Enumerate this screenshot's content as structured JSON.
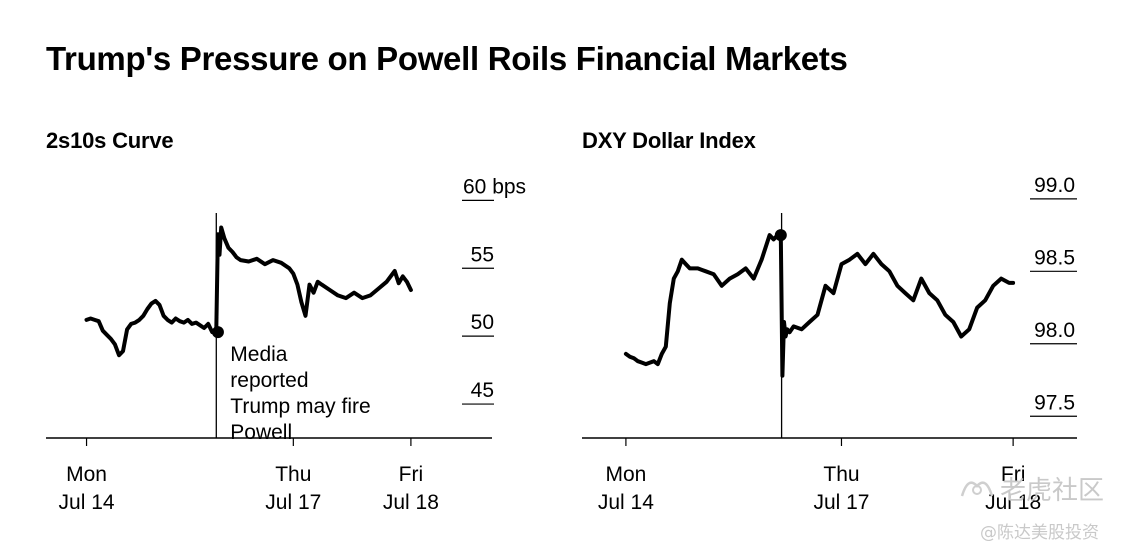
{
  "title": "Trump's Pressure on Powell Roils Financial Markets",
  "chart_data": [
    {
      "type": "line",
      "title": "2s10s Curve",
      "ylim": [
        42.5,
        61.5
      ],
      "y_ticks": [
        {
          "value": 60,
          "label": "60 bps"
        },
        {
          "value": 55,
          "label": "55"
        },
        {
          "value": 50,
          "label": "50"
        },
        {
          "value": 45,
          "label": "45"
        }
      ],
      "x_ticks": [
        {
          "x": 0.0,
          "line1": "Mon",
          "line2": "Jul 14"
        },
        {
          "x": 2.55,
          "line1": "Thu",
          "line2": "Jul 17"
        },
        {
          "x": 4.0,
          "line1": "Fri",
          "line2": "Jul 18"
        }
      ],
      "xlim": [
        -0.5,
        5.0
      ],
      "event": {
        "x": 1.6,
        "label_lines": [
          "Media",
          "reported",
          "Trump may fire",
          "Powell"
        ]
      },
      "marker": {
        "x": 1.62,
        "y": 50.3
      },
      "series": [
        {
          "x": [
            0.0,
            0.05,
            0.1,
            0.15,
            0.2,
            0.25,
            0.3,
            0.35,
            0.4,
            0.45,
            0.5,
            0.55,
            0.6,
            0.65,
            0.7,
            0.75,
            0.8,
            0.85,
            0.9,
            0.95,
            1.0,
            1.05,
            1.1,
            1.15,
            1.2,
            1.25,
            1.3,
            1.35,
            1.4,
            1.45,
            1.5,
            1.55,
            1.6,
            1.62,
            1.64,
            1.66,
            1.7,
            1.75,
            1.8,
            1.85,
            1.9,
            2.0,
            2.1,
            2.2,
            2.3,
            2.4,
            2.5,
            2.55,
            2.6,
            2.65,
            2.7,
            2.75,
            2.8,
            2.85,
            2.9,
            3.0,
            3.1,
            3.2,
            3.3,
            3.4,
            3.5,
            3.6,
            3.7,
            3.8,
            3.85,
            3.9,
            3.95,
            4.0
          ],
          "y": [
            51.2,
            51.3,
            51.2,
            51.1,
            50.4,
            50.1,
            49.8,
            49.4,
            48.6,
            48.9,
            50.5,
            50.9,
            51.0,
            51.2,
            51.5,
            52.0,
            52.4,
            52.6,
            52.3,
            51.5,
            51.2,
            51.0,
            51.3,
            51.1,
            51.0,
            51.2,
            50.9,
            51.0,
            50.8,
            50.6,
            50.9,
            50.3,
            50.5,
            57.5,
            56.0,
            58.0,
            57.2,
            56.5,
            56.2,
            55.8,
            55.6,
            55.5,
            55.7,
            55.3,
            55.6,
            55.4,
            55.0,
            54.6,
            53.8,
            52.5,
            51.5,
            53.8,
            53.2,
            54.0,
            53.8,
            53.4,
            53.0,
            52.8,
            53.2,
            52.8,
            53.0,
            53.5,
            54.0,
            54.8,
            53.9,
            54.4,
            54.0,
            53.4
          ]
        }
      ]
    },
    {
      "type": "line",
      "title": "DXY Dollar Index",
      "ylim": [
        97.35,
        99.13
      ],
      "y_ticks": [
        {
          "value": 99.0,
          "label": "99.0"
        },
        {
          "value": 98.5,
          "label": "98.5"
        },
        {
          "value": 98.0,
          "label": "98.0"
        },
        {
          "value": 97.5,
          "label": "97.5"
        }
      ],
      "x_ticks": [
        {
          "x": 0.0,
          "line1": "Mon",
          "line2": "Jul 14"
        },
        {
          "x": 2.7,
          "line1": "Thu",
          "line2": "Jul 17"
        },
        {
          "x": 4.85,
          "line1": "Fri",
          "line2": "Jul 18"
        }
      ],
      "xlim": [
        -0.55,
        5.65
      ],
      "event": {
        "x": 1.95,
        "label_lines": []
      },
      "marker": {
        "x": 1.94,
        "y": 98.75
      },
      "series": [
        {
          "x": [
            0.0,
            0.05,
            0.1,
            0.15,
            0.2,
            0.25,
            0.3,
            0.35,
            0.4,
            0.45,
            0.5,
            0.55,
            0.6,
            0.65,
            0.7,
            0.75,
            0.8,
            0.85,
            0.9,
            0.95,
            1.0,
            1.1,
            1.2,
            1.3,
            1.4,
            1.5,
            1.6,
            1.7,
            1.8,
            1.85,
            1.9,
            1.94,
            1.96,
            1.98,
            2.0,
            2.02,
            2.05,
            2.1,
            2.2,
            2.3,
            2.4,
            2.5,
            2.6,
            2.7,
            2.8,
            2.9,
            3.0,
            3.1,
            3.2,
            3.3,
            3.4,
            3.5,
            3.6,
            3.7,
            3.8,
            3.9,
            4.0,
            4.1,
            4.2,
            4.3,
            4.4,
            4.5,
            4.6,
            4.7,
            4.8,
            4.85
          ],
          "y": [
            97.93,
            97.91,
            97.9,
            97.88,
            97.87,
            97.86,
            97.87,
            97.88,
            97.86,
            97.93,
            97.98,
            98.28,
            98.45,
            98.5,
            98.58,
            98.55,
            98.52,
            98.52,
            98.52,
            98.51,
            98.5,
            98.48,
            98.4,
            98.45,
            98.48,
            98.52,
            98.45,
            98.58,
            98.75,
            98.72,
            98.75,
            98.75,
            97.78,
            98.15,
            98.05,
            98.1,
            98.08,
            98.12,
            98.1,
            98.15,
            98.2,
            98.4,
            98.35,
            98.55,
            98.58,
            98.62,
            98.55,
            98.62,
            98.55,
            98.5,
            98.4,
            98.35,
            98.3,
            98.45,
            98.35,
            98.3,
            98.2,
            98.15,
            98.05,
            98.1,
            98.25,
            98.3,
            98.4,
            98.45,
            98.42,
            98.42
          ]
        }
      ]
    }
  ],
  "watermark": {
    "brand": "老虎社区",
    "account": "@陈达美股投资"
  }
}
